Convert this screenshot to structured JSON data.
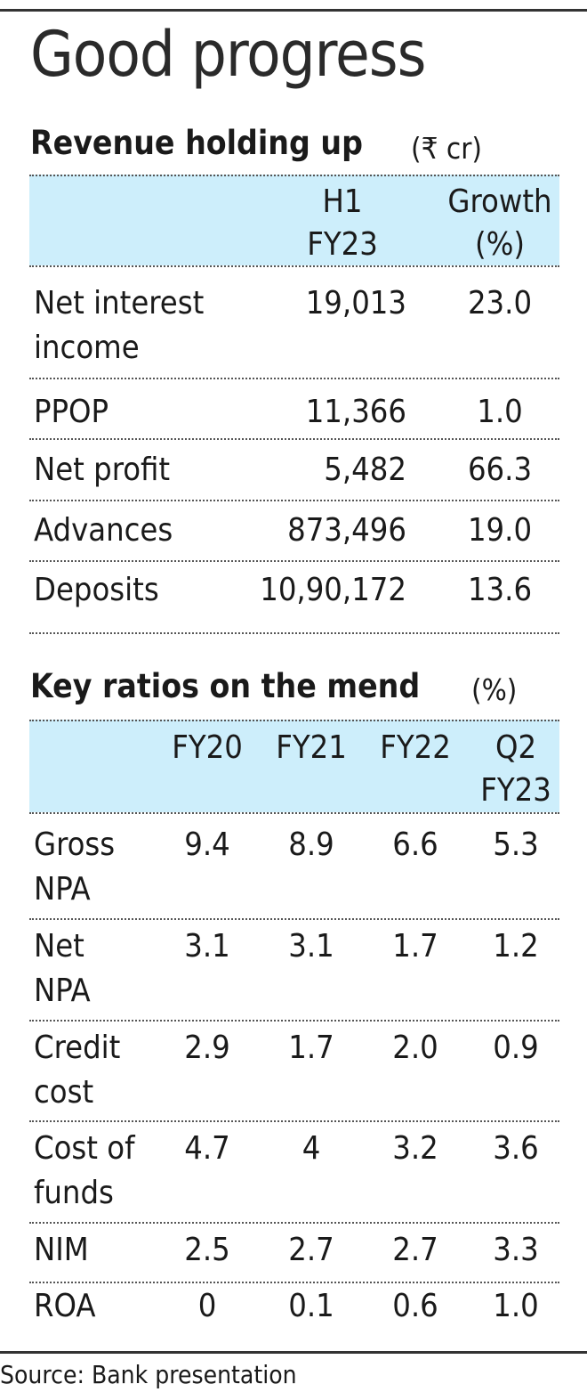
{
  "title": "Good progress",
  "chart_data": [
    {
      "type": "table",
      "title": "Revenue holding up",
      "unit": "(₹ cr)",
      "columns": [
        "",
        "H1 FY23",
        "Growth (%)"
      ],
      "header_lines": [
        [
          "H1",
          "FY23"
        ],
        [
          "Growth",
          "(%)"
        ]
      ],
      "rows": [
        {
          "label": "Net interest income",
          "label_lines": [
            "Net interest",
            "income"
          ],
          "values": [
            "19,013",
            "23.0"
          ]
        },
        {
          "label": "PPOP",
          "label_lines": [
            "PPOP"
          ],
          "values": [
            "11,366",
            "1.0"
          ]
        },
        {
          "label": "Net profit",
          "label_lines": [
            "Net profit"
          ],
          "values": [
            "5,482",
            "66.3"
          ]
        },
        {
          "label": "Advances",
          "label_lines": [
            "Advances"
          ],
          "values": [
            "873,496",
            "19.0"
          ]
        },
        {
          "label": "Deposits",
          "label_lines": [
            "Deposits"
          ],
          "values": [
            "10,90,172",
            "13.6"
          ]
        }
      ]
    },
    {
      "type": "table",
      "title": "Key ratios on the mend",
      "unit": "(%)",
      "columns": [
        "",
        "FY20",
        "FY21",
        "FY22",
        "Q2 FY23"
      ],
      "header_lines": [
        [
          "FY20"
        ],
        [
          "FY21"
        ],
        [
          "FY22"
        ],
        [
          "Q2",
          "FY23"
        ]
      ],
      "rows": [
        {
          "label": "Gross NPA",
          "label_lines": [
            "Gross",
            "NPA"
          ],
          "values": [
            "9.4",
            "8.9",
            "6.6",
            "5.3"
          ]
        },
        {
          "label": "Net NPA",
          "label_lines": [
            "Net",
            "NPA"
          ],
          "values": [
            "3.1",
            "3.1",
            "1.7",
            "1.2"
          ]
        },
        {
          "label": "Credit cost",
          "label_lines": [
            "Credit",
            "cost"
          ],
          "values": [
            "2.9",
            "1.7",
            "2.0",
            "0.9"
          ]
        },
        {
          "label": "Cost of funds",
          "label_lines": [
            "Cost of",
            "funds"
          ],
          "values": [
            "4.7",
            "4",
            "3.2",
            "3.6"
          ]
        },
        {
          "label": "NIM",
          "label_lines": [
            "NIM"
          ],
          "values": [
            "2.5",
            "2.7",
            "2.7",
            "3.3"
          ]
        },
        {
          "label": "ROA",
          "label_lines": [
            "ROA"
          ],
          "values": [
            "0",
            "0.1",
            "0.6",
            "1.0"
          ]
        }
      ]
    }
  ],
  "source": "Source: Bank presentation",
  "colors": {
    "header_band": "#cdeefb",
    "text": "#1a1a1a"
  }
}
